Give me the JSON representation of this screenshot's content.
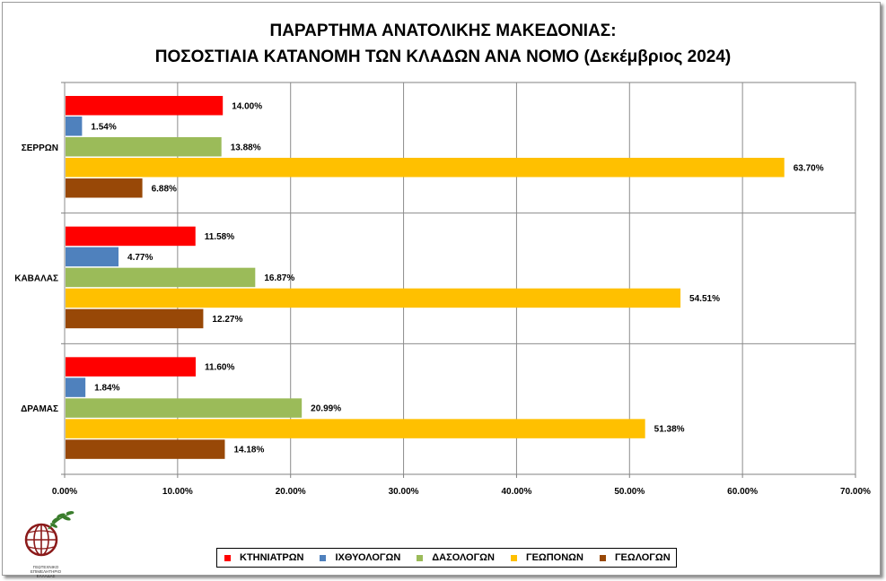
{
  "title_line1": "ΠΑΡΑΡΤΗΜΑ ΑΝΑΤΟΛΙΚΗΣ ΜΑΚΕΔΟΝΙΑΣ:",
  "title_line2": "ΠΟΣΟΣΤΙΑΙΑ ΚΑΤΑΝΟΜΗ ΤΩΝ ΚΛΑΔΩΝ ΑΝΑ ΝΟΜΟ (Δεκέμβριος 2024)",
  "logo": {
    "text_line1": "ΓΕΩΤΕΧΝΙΚΟ",
    "text_line2": "ΕΠΙΜΕΛΗΤΗΡΙΟ",
    "text_line3": "ΕΛΛΑΔΑΣ"
  },
  "chart_data": {
    "type": "bar",
    "orientation": "horizontal",
    "title": "ΠΑΡΑΡΤΗΜΑ ΑΝΑΤΟΛΙΚΗΣ ΜΑΚΕΔΟΝΙΑΣ: ΠΟΣΟΣΤΙΑΙΑ ΚΑΤΑΝΟΜΗ ΤΩΝ ΚΛΑΔΩΝ ΑΝΑ ΝΟΜΟ (Δεκέμβριος 2024)",
    "categories": [
      "ΣΕΡΡΩΝ",
      "ΚΑΒΑΛΑΣ",
      "ΔΡΑΜΑΣ"
    ],
    "xlim": [
      0,
      70
    ],
    "x_ticks": [
      0,
      10,
      20,
      30,
      40,
      50,
      60,
      70
    ],
    "x_tick_labels": [
      "0.00%",
      "10.00%",
      "20.00%",
      "30.00%",
      "40.00%",
      "50.00%",
      "60.00%",
      "70.00%"
    ],
    "grid": true,
    "legend_position": "bottom",
    "series": [
      {
        "name": "ΚΤΗΝΙΑΤΡΩΝ",
        "color": "#ff0000",
        "values": [
          14.0,
          11.58,
          11.6
        ],
        "labels": [
          "14.00%",
          "11.58%",
          "11.60%"
        ]
      },
      {
        "name": "ΙΧΘΥΟΛΟΓΩΝ",
        "color": "#4f81bd",
        "values": [
          1.54,
          4.77,
          1.84
        ],
        "labels": [
          "1.54%",
          "4.77%",
          "1.84%"
        ]
      },
      {
        "name": "ΔΑΣΟΛΟΓΩΝ",
        "color": "#9bbb59",
        "values": [
          13.88,
          16.87,
          20.99
        ],
        "labels": [
          "13.88%",
          "16.87%",
          "20.99%"
        ]
      },
      {
        "name": "ΓΕΩΠΟΝΩΝ",
        "color": "#ffc000",
        "values": [
          63.7,
          54.51,
          51.38
        ],
        "labels": [
          "63.70%",
          "54.51%",
          "51.38%"
        ]
      },
      {
        "name": "ΓΕΩΛΟΓΩΝ",
        "color": "#984807",
        "values": [
          6.88,
          12.27,
          14.18
        ],
        "labels": [
          "6.88%",
          "12.27%",
          "14.18%"
        ]
      }
    ]
  }
}
